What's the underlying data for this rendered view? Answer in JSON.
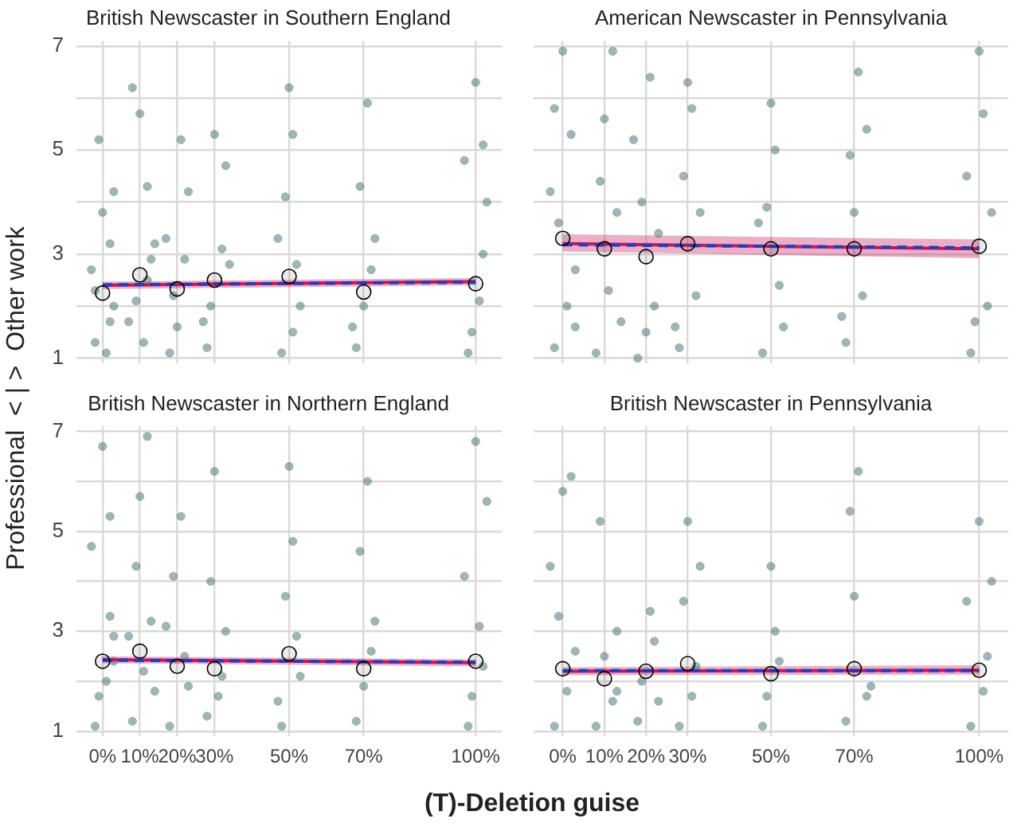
{
  "chart_data": [
    {
      "type": "scatter",
      "title": "British Newscaster in Southern England",
      "ylabel": "Professional  < | >  Other work",
      "xlim": [
        -7,
        107
      ],
      "ylim": [
        0.9,
        7.1
      ],
      "xticks": [
        {
          "value": 0,
          "label": null
        },
        {
          "value": 10,
          "label": null
        },
        {
          "value": 20,
          "label": null
        },
        {
          "value": 30,
          "label": null
        },
        {
          "value": 50,
          "label": null
        },
        {
          "value": 70,
          "label": null
        },
        {
          "value": 100,
          "label": null
        }
      ],
      "yticks": [
        1,
        {
          "value": 2,
          "label": null
        },
        3,
        {
          "value": 4,
          "label": null
        },
        5,
        {
          "value": 6,
          "label": null
        },
        7
      ],
      "grid": true,
      "legend": false,
      "tick_labels": "y",
      "series": [
        {
          "type": "scatter",
          "marker": "circle",
          "color": "#527a7a",
          "x": [
            -2,
            1,
            3,
            -3,
            2,
            0,
            -1,
            2,
            -2,
            3,
            8,
            11,
            13,
            9,
            12,
            10,
            14,
            7,
            12,
            18,
            22,
            21,
            19,
            23,
            17,
            20,
            28,
            32,
            30,
            29,
            33,
            34,
            27,
            48,
            52,
            50,
            51,
            49,
            53,
            47,
            51,
            68,
            72,
            71,
            69,
            70,
            73,
            67,
            98,
            102,
            100,
            97,
            103,
            101,
            99,
            102
          ],
          "values": [
            1.3,
            1.1,
            2.0,
            2.7,
            3.2,
            3.8,
            5.2,
            1.7,
            2.3,
            4.2,
            6.2,
            1.3,
            2.9,
            2.1,
            4.3,
            5.7,
            3.2,
            1.7,
            2.5,
            1.1,
            2.9,
            5.2,
            2.2,
            4.2,
            3.3,
            1.6,
            1.2,
            3.1,
            5.3,
            2.0,
            4.7,
            2.8,
            1.7,
            1.1,
            2.8,
            6.2,
            5.3,
            4.1,
            2.0,
            3.3,
            1.5,
            1.2,
            2.7,
            5.9,
            4.3,
            2.0,
            3.3,
            1.6,
            1.1,
            3.0,
            6.3,
            4.8,
            4.0,
            2.1,
            1.5,
            5.1
          ]
        },
        {
          "type": "line",
          "marker": "none",
          "line_style": "solid",
          "color": "#c2185b",
          "x": [
            0,
            100
          ],
          "values": [
            2.4,
            2.47
          ],
          "lower": [
            2.33,
            2.4
          ],
          "upper": [
            2.47,
            2.54
          ]
        },
        {
          "type": "line",
          "marker": "none",
          "line_style": "dashed",
          "color": "#1f3fbf",
          "x": [
            0,
            100
          ],
          "values": [
            2.41,
            2.46
          ]
        },
        {
          "type": "scatter",
          "marker": "circle",
          "color": "#000000",
          "x": [
            0,
            10,
            20,
            30,
            50,
            70,
            100
          ],
          "values": [
            2.25,
            2.6,
            2.33,
            2.5,
            2.57,
            2.27,
            2.43
          ]
        }
      ]
    },
    {
      "type": "scatter",
      "title": "American Newscaster in Pennsylvania",
      "xlim": [
        -7,
        107
      ],
      "ylim": [
        0.9,
        7.1
      ],
      "xticks": [
        {
          "value": 0,
          "label": null
        },
        {
          "value": 10,
          "label": null
        },
        {
          "value": 20,
          "label": null
        },
        {
          "value": 30,
          "label": null
        },
        {
          "value": 50,
          "label": null
        },
        {
          "value": 70,
          "label": null
        },
        {
          "value": 100,
          "label": null
        }
      ],
      "yticks": [
        1,
        {
          "value": 2,
          "label": null
        },
        3,
        {
          "value": 4,
          "label": null
        },
        5,
        {
          "value": 6,
          "label": null
        },
        7
      ],
      "grid": true,
      "legend": false,
      "tick_labels": false,
      "series": [
        {
          "type": "scatter",
          "marker": "circle",
          "color": "#527a7a",
          "x": [
            -2,
            1,
            3,
            -3,
            2,
            0,
            -1,
            3,
            -2,
            8,
            11,
            13,
            9,
            12,
            10,
            14,
            18,
            22,
            21,
            19,
            23,
            17,
            20,
            28,
            32,
            30,
            29,
            33,
            31,
            27,
            48,
            52,
            50,
            51,
            49,
            53,
            47,
            68,
            72,
            71,
            69,
            70,
            73,
            67,
            98,
            102,
            100,
            97,
            103,
            101,
            99
          ],
          "values": [
            1.2,
            2.0,
            2.7,
            4.2,
            5.3,
            6.9,
            3.6,
            1.6,
            5.8,
            1.1,
            2.3,
            3.8,
            4.4,
            6.9,
            5.6,
            1.7,
            1.0,
            2.0,
            6.4,
            4.0,
            3.4,
            5.2,
            1.5,
            1.2,
            2.2,
            6.3,
            4.5,
            3.8,
            5.8,
            1.6,
            1.1,
            2.4,
            5.9,
            5.0,
            3.9,
            1.6,
            3.6,
            1.3,
            2.2,
            6.5,
            4.9,
            3.8,
            5.4,
            1.8,
            1.1,
            2.0,
            6.9,
            4.5,
            3.8,
            5.7,
            1.7
          ]
        },
        {
          "type": "line",
          "marker": "none",
          "line_style": "solid",
          "color": "#c2185b",
          "x": [
            0,
            100
          ],
          "values": [
            3.2,
            3.1
          ],
          "lower": [
            3.05,
            2.92
          ],
          "upper": [
            3.38,
            3.28
          ]
        },
        {
          "type": "line",
          "marker": "none",
          "line_style": "dashed",
          "color": "#1f3fbf",
          "x": [
            0,
            100
          ],
          "values": [
            3.18,
            3.12
          ]
        },
        {
          "type": "scatter",
          "marker": "circle",
          "color": "#000000",
          "x": [
            0,
            10,
            20,
            30,
            50,
            70,
            100
          ],
          "values": [
            3.3,
            3.1,
            2.95,
            3.2,
            3.1,
            3.1,
            3.15
          ]
        }
      ]
    },
    {
      "type": "scatter",
      "title": "British Newscaster in Northern England",
      "xlabel": "(T)-Deletion guise",
      "xlim": [
        -7,
        107
      ],
      "ylim": [
        0.9,
        7.1
      ],
      "xticks": [
        {
          "value": 0,
          "label": "0%"
        },
        {
          "value": 10,
          "label": "10%"
        },
        {
          "value": 20,
          "label": "20%"
        },
        {
          "value": 30,
          "label": "30%"
        },
        {
          "value": 50,
          "label": "50%"
        },
        {
          "value": 70,
          "label": "70%"
        },
        {
          "value": 100,
          "label": "100%"
        }
      ],
      "yticks": [
        1,
        {
          "value": 2,
          "label": null
        },
        3,
        {
          "value": 4,
          "label": null
        },
        5,
        {
          "value": 6,
          "label": null
        },
        7
      ],
      "grid": true,
      "legend": false,
      "series": [
        {
          "type": "scatter",
          "marker": "circle",
          "color": "#527a7a",
          "x": [
            -2,
            1,
            3,
            -3,
            2,
            0,
            -1,
            3,
            2,
            8,
            11,
            13,
            9,
            12,
            10,
            14,
            7,
            18,
            22,
            21,
            19,
            23,
            17,
            28,
            32,
            30,
            29,
            33,
            31,
            48,
            52,
            50,
            51,
            49,
            53,
            47,
            68,
            72,
            71,
            69,
            70,
            73,
            98,
            102,
            100,
            97,
            103,
            101,
            99
          ],
          "values": [
            1.1,
            2.0,
            2.9,
            4.7,
            5.3,
            6.7,
            1.7,
            2.4,
            3.3,
            1.2,
            2.2,
            3.2,
            4.3,
            6.9,
            5.7,
            1.8,
            2.9,
            1.1,
            2.5,
            5.3,
            4.1,
            1.9,
            3.1,
            1.3,
            2.1,
            6.2,
            4.0,
            3.0,
            1.7,
            1.1,
            2.9,
            6.3,
            4.8,
            3.7,
            2.1,
            1.6,
            1.2,
            2.6,
            6.0,
            4.6,
            1.9,
            3.2,
            1.1,
            2.3,
            6.8,
            4.1,
            5.6,
            3.1,
            1.7
          ]
        },
        {
          "type": "line",
          "marker": "none",
          "line_style": "solid",
          "color": "#c2185b",
          "x": [
            0,
            100
          ],
          "values": [
            2.43,
            2.37
          ],
          "lower": [
            2.36,
            2.3
          ],
          "upper": [
            2.5,
            2.44
          ]
        },
        {
          "type": "line",
          "marker": "none",
          "line_style": "dashed",
          "color": "#1f3fbf",
          "x": [
            0,
            100
          ],
          "values": [
            2.42,
            2.38
          ]
        },
        {
          "type": "scatter",
          "marker": "circle",
          "color": "#000000",
          "x": [
            0,
            10,
            20,
            30,
            50,
            70,
            100
          ],
          "values": [
            2.4,
            2.6,
            2.3,
            2.25,
            2.55,
            2.25,
            2.4
          ]
        }
      ]
    },
    {
      "type": "scatter",
      "title": "British Newscaster in Pennsylvania",
      "xlim": [
        -7,
        107
      ],
      "ylim": [
        0.9,
        7.1
      ],
      "xticks": [
        {
          "value": 0,
          "label": "0%"
        },
        {
          "value": 10,
          "label": "10%"
        },
        {
          "value": 20,
          "label": "20%"
        },
        {
          "value": 30,
          "label": "30%"
        },
        {
          "value": 50,
          "label": "50%"
        },
        {
          "value": 70,
          "label": "70%"
        },
        {
          "value": 100,
          "label": "100%"
        }
      ],
      "yticks": [
        1,
        {
          "value": 2,
          "label": null
        },
        3,
        {
          "value": 4,
          "label": null
        },
        5,
        {
          "value": 6,
          "label": null
        },
        7
      ],
      "grid": true,
      "legend": false,
      "tick_labels": "x",
      "series": [
        {
          "type": "scatter",
          "marker": "circle",
          "color": "#527a7a",
          "x": [
            -2,
            1,
            3,
            -3,
            2,
            0,
            -1,
            8,
            13,
            13,
            9,
            12,
            10,
            18,
            22,
            21,
            19,
            23,
            28,
            32,
            30,
            29,
            33,
            31,
            48,
            52,
            50,
            51,
            49,
            68,
            74,
            71,
            69,
            70,
            73,
            98,
            102,
            100,
            97,
            103,
            101
          ],
          "values": [
            1.1,
            1.8,
            2.6,
            4.3,
            6.1,
            5.8,
            3.3,
            1.1,
            1.8,
            3.0,
            5.2,
            1.6,
            2.5,
            1.2,
            2.8,
            3.4,
            2.0,
            1.6,
            1.1,
            2.3,
            5.2,
            3.6,
            4.3,
            1.7,
            1.1,
            2.4,
            4.3,
            3.0,
            1.7,
            1.2,
            1.9,
            6.2,
            5.4,
            3.7,
            1.7,
            1.1,
            2.5,
            5.2,
            3.6,
            4.0,
            1.8
          ]
        },
        {
          "type": "line",
          "marker": "none",
          "line_style": "solid",
          "color": "#c2185b",
          "x": [
            0,
            100
          ],
          "values": [
            2.2,
            2.22
          ],
          "lower": [
            2.12,
            2.13
          ],
          "upper": [
            2.28,
            2.32
          ]
        },
        {
          "type": "line",
          "marker": "none",
          "line_style": "dashed",
          "color": "#1f3fbf",
          "x": [
            0,
            100
          ],
          "values": [
            2.21,
            2.21
          ]
        },
        {
          "type": "scatter",
          "marker": "circle",
          "color": "#000000",
          "x": [
            0,
            10,
            20,
            30,
            50,
            70,
            100
          ],
          "values": [
            2.25,
            2.05,
            2.2,
            2.35,
            2.15,
            2.25,
            2.22
          ]
        }
      ]
    }
  ]
}
